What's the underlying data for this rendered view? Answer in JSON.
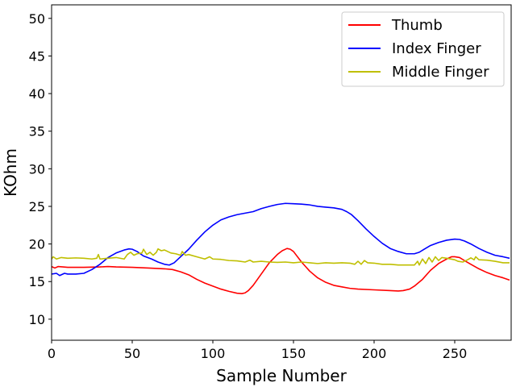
{
  "chart_data": {
    "type": "line",
    "title": "",
    "xlabel": "Sample Number",
    "ylabel": "KOhm",
    "xlim": [
      0,
      285
    ],
    "ylim": [
      7.2,
      51.8
    ],
    "xticks": [
      0,
      50,
      100,
      150,
      200,
      250
    ],
    "yticks": [
      10,
      15,
      20,
      25,
      30,
      35,
      40,
      45,
      50
    ],
    "grid": false,
    "legend_position": "top-right",
    "series": [
      {
        "name": "Thumb",
        "color": "#ff0000",
        "points": [
          [
            0,
            17.0
          ],
          [
            2,
            16.8
          ],
          [
            4,
            17.0
          ],
          [
            10,
            16.9
          ],
          [
            20,
            16.9
          ],
          [
            30,
            16.95
          ],
          [
            35,
            17.0
          ],
          [
            40,
            16.95
          ],
          [
            50,
            16.9
          ],
          [
            60,
            16.8
          ],
          [
            70,
            16.7
          ],
          [
            75,
            16.6
          ],
          [
            80,
            16.3
          ],
          [
            85,
            15.9
          ],
          [
            90,
            15.3
          ],
          [
            95,
            14.8
          ],
          [
            100,
            14.4
          ],
          [
            105,
            14.0
          ],
          [
            110,
            13.7
          ],
          [
            115,
            13.45
          ],
          [
            118,
            13.4
          ],
          [
            120,
            13.5
          ],
          [
            122,
            13.8
          ],
          [
            125,
            14.5
          ],
          [
            130,
            16.0
          ],
          [
            135,
            17.5
          ],
          [
            140,
            18.6
          ],
          [
            143,
            19.1
          ],
          [
            146,
            19.4
          ],
          [
            148,
            19.3
          ],
          [
            150,
            19.0
          ],
          [
            155,
            17.6
          ],
          [
            160,
            16.4
          ],
          [
            165,
            15.5
          ],
          [
            170,
            14.9
          ],
          [
            175,
            14.5
          ],
          [
            180,
            14.3
          ],
          [
            185,
            14.1
          ],
          [
            190,
            14.0
          ],
          [
            200,
            13.9
          ],
          [
            210,
            13.8
          ],
          [
            215,
            13.75
          ],
          [
            218,
            13.8
          ],
          [
            222,
            14.0
          ],
          [
            225,
            14.4
          ],
          [
            230,
            15.3
          ],
          [
            235,
            16.5
          ],
          [
            240,
            17.4
          ],
          [
            245,
            18.0
          ],
          [
            248,
            18.3
          ],
          [
            250,
            18.3
          ],
          [
            253,
            18.2
          ],
          [
            256,
            17.8
          ],
          [
            260,
            17.3
          ],
          [
            265,
            16.7
          ],
          [
            270,
            16.2
          ],
          [
            275,
            15.8
          ],
          [
            280,
            15.5
          ],
          [
            284,
            15.2
          ]
        ]
      },
      {
        "name": "Index Finger",
        "color": "#0000ff",
        "points": [
          [
            0,
            16.0
          ],
          [
            3,
            16.1
          ],
          [
            5,
            15.8
          ],
          [
            8,
            16.1
          ],
          [
            10,
            16.0
          ],
          [
            15,
            16.0
          ],
          [
            20,
            16.1
          ],
          [
            25,
            16.6
          ],
          [
            30,
            17.3
          ],
          [
            35,
            18.2
          ],
          [
            40,
            18.8
          ],
          [
            45,
            19.2
          ],
          [
            48,
            19.35
          ],
          [
            50,
            19.3
          ],
          [
            53,
            19.0
          ],
          [
            57,
            18.4
          ],
          [
            62,
            18.0
          ],
          [
            66,
            17.6
          ],
          [
            70,
            17.3
          ],
          [
            73,
            17.2
          ],
          [
            76,
            17.5
          ],
          [
            80,
            18.3
          ],
          [
            85,
            19.3
          ],
          [
            90,
            20.5
          ],
          [
            95,
            21.6
          ],
          [
            100,
            22.5
          ],
          [
            105,
            23.2
          ],
          [
            110,
            23.6
          ],
          [
            115,
            23.9
          ],
          [
            120,
            24.1
          ],
          [
            125,
            24.3
          ],
          [
            130,
            24.7
          ],
          [
            135,
            25.0
          ],
          [
            140,
            25.25
          ],
          [
            145,
            25.4
          ],
          [
            150,
            25.35
          ],
          [
            155,
            25.3
          ],
          [
            160,
            25.2
          ],
          [
            165,
            25.0
          ],
          [
            170,
            24.9
          ],
          [
            175,
            24.8
          ],
          [
            180,
            24.6
          ],
          [
            183,
            24.3
          ],
          [
            186,
            23.9
          ],
          [
            190,
            23.1
          ],
          [
            195,
            22.0
          ],
          [
            200,
            21.0
          ],
          [
            205,
            20.1
          ],
          [
            210,
            19.4
          ],
          [
            215,
            19.0
          ],
          [
            220,
            18.7
          ],
          [
            225,
            18.7
          ],
          [
            228,
            18.9
          ],
          [
            231,
            19.3
          ],
          [
            235,
            19.8
          ],
          [
            240,
            20.2
          ],
          [
            245,
            20.5
          ],
          [
            250,
            20.65
          ],
          [
            253,
            20.6
          ],
          [
            256,
            20.4
          ],
          [
            260,
            20.0
          ],
          [
            265,
            19.4
          ],
          [
            270,
            18.9
          ],
          [
            275,
            18.5
          ],
          [
            280,
            18.3
          ],
          [
            284,
            18.1
          ]
        ]
      },
      {
        "name": "Middle Finger",
        "color": "#bfbf00",
        "points": [
          [
            0,
            18.0
          ],
          [
            1,
            18.3
          ],
          [
            3,
            18.0
          ],
          [
            6,
            18.2
          ],
          [
            10,
            18.1
          ],
          [
            15,
            18.15
          ],
          [
            20,
            18.1
          ],
          [
            25,
            18.0
          ],
          [
            28,
            18.1
          ],
          [
            29,
            18.6
          ],
          [
            30,
            18.0
          ],
          [
            35,
            18.1
          ],
          [
            40,
            18.2
          ],
          [
            45,
            18.0
          ],
          [
            47,
            18.6
          ],
          [
            49,
            18.9
          ],
          [
            51,
            18.5
          ],
          [
            53,
            18.7
          ],
          [
            56,
            18.8
          ],
          [
            57,
            19.3
          ],
          [
            59,
            18.6
          ],
          [
            61,
            18.9
          ],
          [
            63,
            18.5
          ],
          [
            65,
            18.9
          ],
          [
            66,
            19.35
          ],
          [
            68,
            19.1
          ],
          [
            70,
            19.2
          ],
          [
            72,
            19.0
          ],
          [
            74,
            18.8
          ],
          [
            77,
            18.7
          ],
          [
            80,
            18.5
          ],
          [
            81,
            19.0
          ],
          [
            83,
            18.5
          ],
          [
            85,
            18.6
          ],
          [
            90,
            18.3
          ],
          [
            95,
            18.0
          ],
          [
            98,
            18.3
          ],
          [
            100,
            18.0
          ],
          [
            105,
            17.95
          ],
          [
            110,
            17.8
          ],
          [
            115,
            17.75
          ],
          [
            120,
            17.6
          ],
          [
            123,
            17.85
          ],
          [
            125,
            17.6
          ],
          [
            130,
            17.7
          ],
          [
            135,
            17.6
          ],
          [
            140,
            17.55
          ],
          [
            145,
            17.6
          ],
          [
            150,
            17.5
          ],
          [
            155,
            17.6
          ],
          [
            160,
            17.5
          ],
          [
            165,
            17.4
          ],
          [
            170,
            17.5
          ],
          [
            175,
            17.45
          ],
          [
            180,
            17.5
          ],
          [
            185,
            17.45
          ],
          [
            188,
            17.3
          ],
          [
            190,
            17.7
          ],
          [
            192,
            17.3
          ],
          [
            194,
            17.8
          ],
          [
            196,
            17.5
          ],
          [
            200,
            17.45
          ],
          [
            205,
            17.3
          ],
          [
            210,
            17.3
          ],
          [
            215,
            17.2
          ],
          [
            220,
            17.2
          ],
          [
            225,
            17.2
          ],
          [
            227,
            17.7
          ],
          [
            228,
            17.2
          ],
          [
            230,
            18.0
          ],
          [
            232,
            17.4
          ],
          [
            234,
            18.2
          ],
          [
            236,
            17.6
          ],
          [
            238,
            18.3
          ],
          [
            240,
            17.8
          ],
          [
            242,
            18.2
          ],
          [
            245,
            18.1
          ],
          [
            250,
            17.9
          ],
          [
            252,
            17.7
          ],
          [
            255,
            17.6
          ],
          [
            258,
            17.9
          ],
          [
            260,
            18.15
          ],
          [
            262,
            17.9
          ],
          [
            263,
            18.3
          ],
          [
            265,
            17.9
          ],
          [
            270,
            17.85
          ],
          [
            275,
            17.7
          ],
          [
            280,
            17.5
          ],
          [
            284,
            17.5
          ]
        ]
      }
    ]
  }
}
